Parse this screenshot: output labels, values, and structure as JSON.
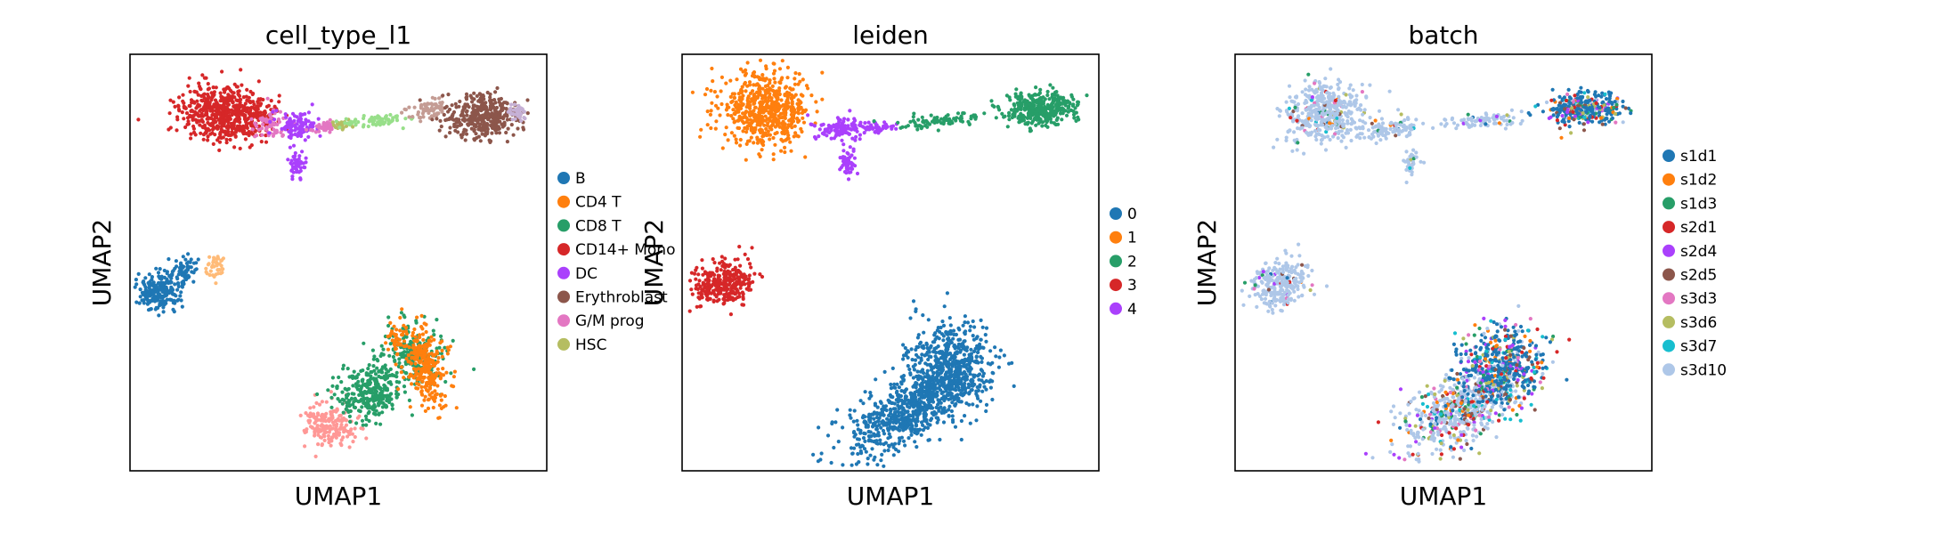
{
  "chart_data": [
    {
      "type": "scatter",
      "title": "cell_type_l1",
      "xlabel": "UMAP1",
      "ylabel": "UMAP2",
      "grid": false,
      "ticks": false,
      "legend": "right",
      "legend_entries": [
        {
          "name": "B",
          "color": "#1f77b4"
        },
        {
          "name": "CD4 T",
          "color": "#ff7f0e"
        },
        {
          "name": "CD8 T",
          "color": "#279e68"
        },
        {
          "name": "CD14+ Mono",
          "color": "#d62728"
        },
        {
          "name": "DC",
          "color": "#aa40fc"
        },
        {
          "name": "Erythroblast",
          "color": "#8c564b"
        },
        {
          "name": "G/M prog",
          "color": "#e377c2"
        },
        {
          "name": "HSC",
          "color": "#b5bd61"
        }
      ]
    },
    {
      "type": "scatter",
      "title": "leiden",
      "xlabel": "UMAP1",
      "ylabel": "UMAP2",
      "grid": false,
      "ticks": false,
      "legend": "right",
      "legend_entries": [
        {
          "name": "0",
          "color": "#1f77b4"
        },
        {
          "name": "1",
          "color": "#ff7f0e"
        },
        {
          "name": "2",
          "color": "#279e68"
        },
        {
          "name": "3",
          "color": "#d62728"
        },
        {
          "name": "4",
          "color": "#aa40fc"
        }
      ]
    },
    {
      "type": "scatter",
      "title": "batch",
      "xlabel": "UMAP1",
      "ylabel": "UMAP2",
      "grid": false,
      "ticks": false,
      "legend": "right",
      "legend_entries": [
        {
          "name": "s1d1",
          "color": "#1f77b4"
        },
        {
          "name": "s1d2",
          "color": "#ff7f0e"
        },
        {
          "name": "s1d3",
          "color": "#279e68"
        },
        {
          "name": "s2d1",
          "color": "#d62728"
        },
        {
          "name": "s2d4",
          "color": "#aa40fc"
        },
        {
          "name": "s2d5",
          "color": "#8c564b"
        },
        {
          "name": "s3d3",
          "color": "#e377c2"
        },
        {
          "name": "s3d6",
          "color": "#b5bd61"
        },
        {
          "name": "s3d7",
          "color": "#17becf"
        },
        {
          "name": "s3d10",
          "color": "#aec7e8"
        }
      ]
    }
  ]
}
